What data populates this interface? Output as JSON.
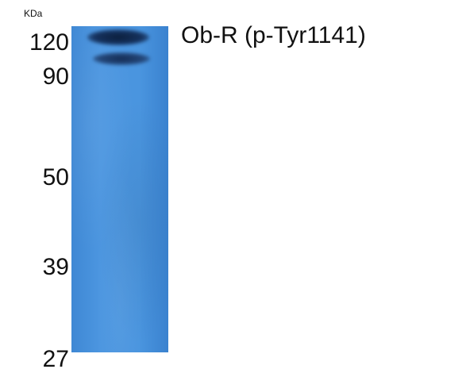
{
  "blot": {
    "unit": "KDa",
    "markers": [
      "120",
      "90",
      "50",
      "39",
      "27"
    ],
    "antibody": "Ob-R (p-Tyr1141)"
  },
  "colors": {
    "lane": "#4a95df",
    "band": "#0b1f3d",
    "text": "#111111"
  }
}
